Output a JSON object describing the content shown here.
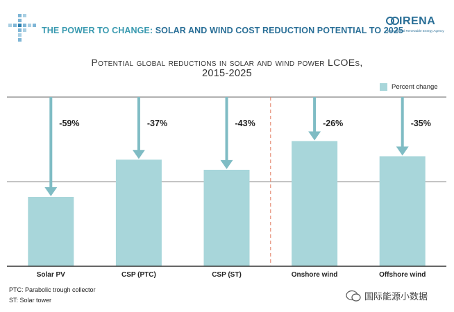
{
  "header": {
    "title_accent": "THE POWER TO CHANGE:",
    "title_rest": "SOLAR AND WIND COST REDUCTION POTENTIAL TO 2025",
    "org_name": "IRENA",
    "org_full": "International Renewable Energy Agency"
  },
  "chart_data": {
    "type": "bar",
    "title_line1": "Potential global reductions in solar and wind power LCOEs,",
    "title_line2": "2015-2025",
    "categories": [
      "Solar PV",
      "CSP (PTC)",
      "CSP (ST)",
      "Onshore wind",
      "Offshore wind"
    ],
    "values": [
      -59,
      -37,
      -43,
      -26,
      -35
    ],
    "value_labels": [
      "-59%",
      "-37%",
      "-43%",
      "-26%",
      "-35%"
    ],
    "legend": [
      "Percent change"
    ],
    "color": "#a8d6da",
    "arrow_color": "#7fbcc4",
    "gridline": "-50%",
    "separator_between": [
      "CSP (ST)",
      "Onshore wind"
    ]
  },
  "footnotes": [
    "PTC: Parabolic trough collector",
    "ST: Solar tower"
  ],
  "watermark": "国际能源小数据"
}
